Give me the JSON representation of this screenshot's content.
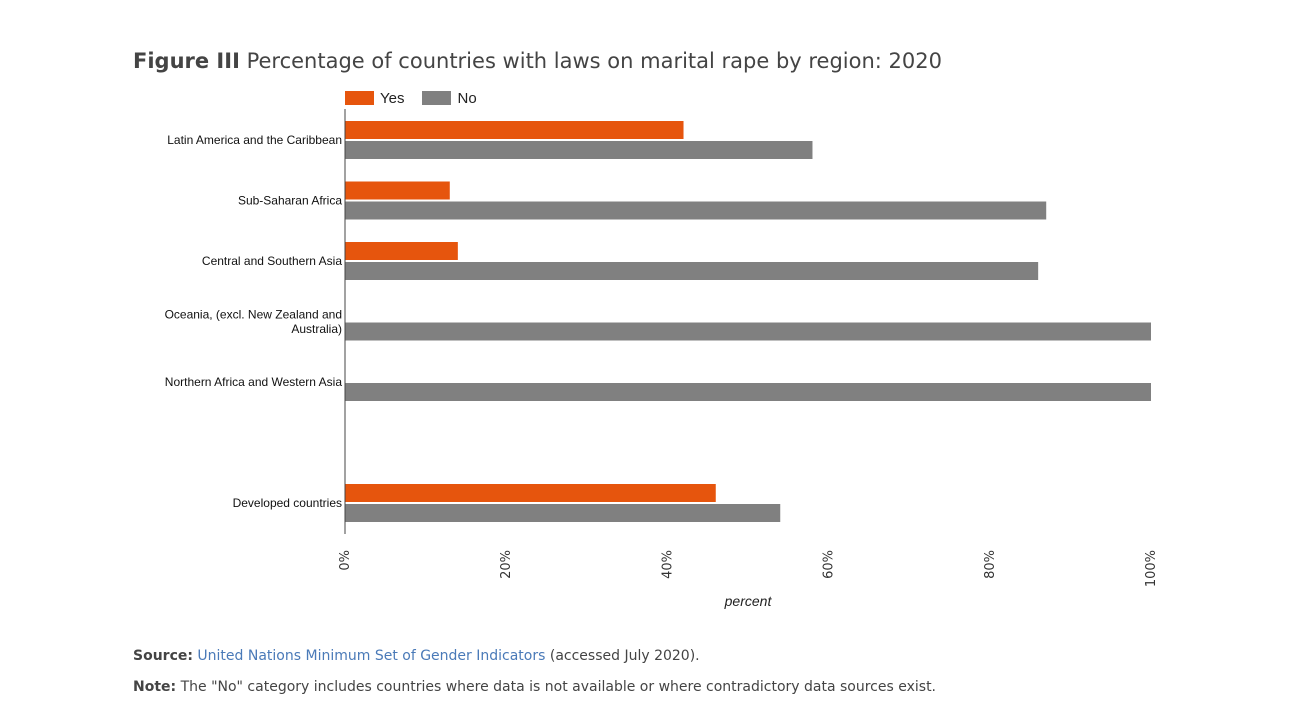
{
  "figure": {
    "label": "Figure III",
    "title": "Percentage of countries with laws on marital rape by region: 2020"
  },
  "legend": [
    {
      "name": "Yes",
      "color": "#e6550d"
    },
    {
      "name": "No",
      "color": "#808080"
    }
  ],
  "chart_data": {
    "type": "bar",
    "orientation": "horizontal",
    "categories": [
      [
        "Latin America and the Caribbean"
      ],
      [
        "Sub-Saharan Africa"
      ],
      [
        "Central and Southern Asia"
      ],
      [
        "Oceania, (excl. New Zealand and",
        "Australia)"
      ],
      [
        "Northern Africa and Western Asia"
      ],
      [
        ""
      ],
      [
        "Developed countries"
      ]
    ],
    "series": [
      {
        "name": "Yes",
        "color": "#e6550d",
        "values": [
          42,
          13,
          14,
          0,
          0,
          null,
          46
        ]
      },
      {
        "name": "No",
        "color": "#808080",
        "values": [
          58,
          87,
          86,
          100,
          100,
          null,
          54
        ]
      }
    ],
    "xlabel": "percent",
    "xlim": [
      0,
      100
    ],
    "xticks": [
      0,
      20,
      40,
      60,
      80,
      100
    ],
    "xtick_labels": [
      "0%",
      "20%",
      "40%",
      "60%",
      "80%",
      "100%"
    ],
    "grid": false,
    "legend_position": "top-left"
  },
  "source": {
    "label": "Source:",
    "link_text": "United Nations Minimum Set of Gender Indicators",
    "suffix": "(accessed July 2020)."
  },
  "note": {
    "label": "Note:",
    "text": "The \"No\" category includes countries where data is not available or where contradictory data sources exist."
  }
}
